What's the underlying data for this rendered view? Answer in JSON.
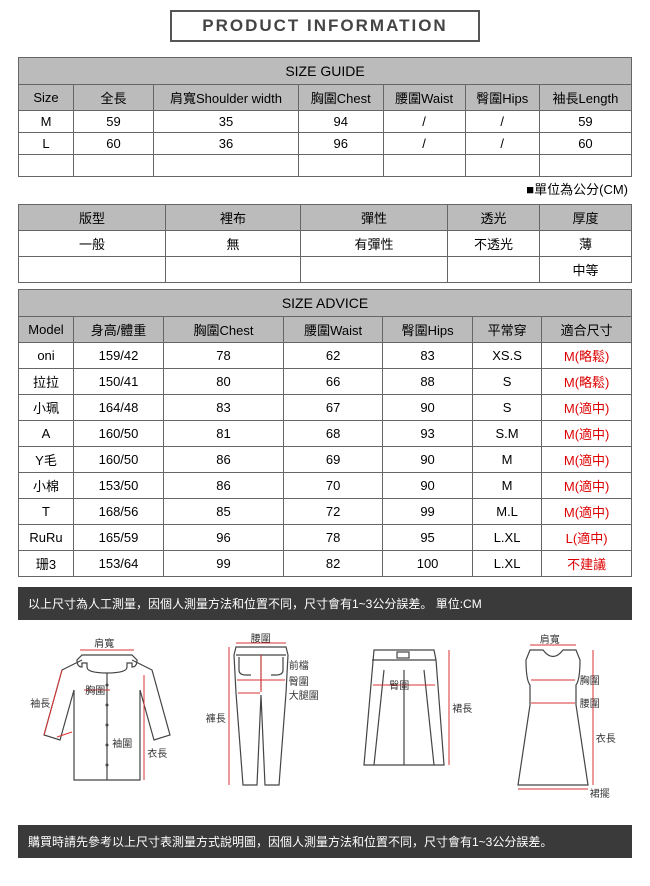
{
  "title": "PRODUCT INFORMATION",
  "sizeGuide": {
    "header": "SIZE GUIDE",
    "columns": [
      "Size",
      "全長",
      "肩寬Shoulder width",
      "胸圍Chest",
      "腰圍Waist",
      "臀圍Hips",
      "袖長Length"
    ],
    "rows": [
      [
        "M",
        "59",
        "35",
        "94",
        "/",
        "/",
        "59"
      ],
      [
        "L",
        "60",
        "36",
        "96",
        "/",
        "/",
        "60"
      ]
    ],
    "unit_note": "■單位為公分(CM)"
  },
  "attributes": {
    "headers": [
      "版型",
      "裡布",
      "彈性",
      "透光",
      "厚度"
    ],
    "row1": [
      "一般",
      "無",
      "有彈性",
      "不透光",
      "薄"
    ],
    "row2": [
      "",
      "",
      "",
      "",
      "中等"
    ]
  },
  "sizeAdvice": {
    "header": "SIZE ADVICE",
    "columns": [
      "Model",
      "身高/體重",
      "胸圍Chest",
      "腰圍Waist",
      "臀圍Hips",
      "平常穿",
      "適合尺寸"
    ],
    "rows": [
      [
        "oni",
        "159/42",
        "78",
        "62",
        "83",
        "XS.S",
        "M(略鬆)"
      ],
      [
        "拉拉",
        "150/41",
        "80",
        "66",
        "88",
        "S",
        "M(略鬆)"
      ],
      [
        "小珮",
        "164/48",
        "83",
        "67",
        "90",
        "S",
        "M(適中)"
      ],
      [
        "A",
        "160/50",
        "81",
        "68",
        "93",
        "S.M",
        "M(適中)"
      ],
      [
        "Y毛",
        "160/50",
        "86",
        "69",
        "90",
        "M",
        "M(適中)"
      ],
      [
        "小棉",
        "153/50",
        "86",
        "70",
        "90",
        "M",
        "M(適中)"
      ],
      [
        "T",
        "168/56",
        "85",
        "72",
        "99",
        "M.L",
        "M(適中)"
      ],
      [
        "RuRu",
        "165/59",
        "96",
        "78",
        "95",
        "L.XL",
        "L(適中)"
      ],
      [
        "珊3",
        "153/64",
        "99",
        "82",
        "100",
        "L.XL",
        "不建議"
      ]
    ]
  },
  "notes": {
    "top": "以上尺寸為人工測量，因個人測量方法和位置不同，尺寸會有1~3公分誤差。 單位:CM",
    "bottom": "購買時請先參考以上尺寸表測量方式說明圖，因個人測量方法和位置不同，尺寸會有1~3公分誤差。"
  },
  "diagramLabels": {
    "shirt": {
      "shoulder": "肩寬",
      "sleeve": "袖長",
      "chest": "胸圍",
      "cuff": "袖圍",
      "length": "衣長"
    },
    "pants": {
      "waist": "腰圍",
      "front": "前檔",
      "hip": "臀圍",
      "thigh": "大腿圍",
      "length": "褲長"
    },
    "skirt": {
      "hip": "臀圍",
      "length": "裙長"
    },
    "dress": {
      "shoulder": "肩寬",
      "chest": "胸圍",
      "waist": "腰圍",
      "length": "衣長",
      "hem": "裙擺"
    }
  }
}
